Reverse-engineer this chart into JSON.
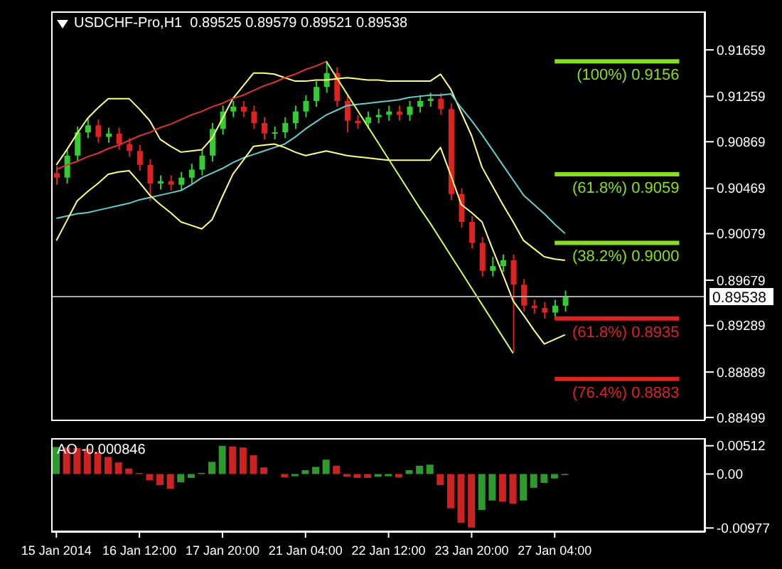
{
  "chart_data": [
    {
      "type": "candlestick",
      "title": "USDCHF-Pro,H1  0.89525 0.89579 0.89521 0.89538",
      "categories": [
        null,
        null,
        null,
        null,
        null,
        null,
        null,
        null,
        null,
        null,
        null,
        null,
        null,
        null,
        null,
        null,
        null,
        null,
        null,
        null,
        null,
        null,
        null,
        null,
        null,
        null,
        null,
        null,
        null,
        null,
        null,
        null,
        null,
        null,
        null,
        null,
        null,
        null,
        null,
        null,
        null,
        null,
        null,
        null,
        null,
        null,
        null,
        null,
        null,
        null,
        null,
        null,
        null,
        null,
        null,
        null,
        null,
        null,
        null,
        null,
        null,
        null,
        null
      ],
      "ohlc": [
        [
          0.906,
          0.9066,
          0.905,
          0.9056
        ],
        [
          0.9056,
          0.908,
          0.9051,
          0.9075
        ],
        [
          0.9075,
          0.91,
          0.907,
          0.9095
        ],
        [
          0.9095,
          0.9107,
          0.909,
          0.9101
        ],
        [
          0.9101,
          0.9106,
          0.9086,
          0.9091
        ],
        [
          0.9091,
          0.9099,
          0.9086,
          0.9094
        ],
        [
          0.9094,
          0.9099,
          0.908,
          0.9085
        ],
        [
          0.9085,
          0.909,
          0.9074,
          0.9079
        ],
        [
          0.9079,
          0.9084,
          0.9062,
          0.9067
        ],
        [
          0.9067,
          0.9072,
          0.9036,
          0.9051
        ],
        [
          0.9051,
          0.9058,
          0.9046,
          0.9053
        ],
        [
          0.9053,
          0.9058,
          0.9045,
          0.905
        ],
        [
          0.905,
          0.9061,
          0.9045,
          0.9056
        ],
        [
          0.9056,
          0.9068,
          0.9051,
          0.9063
        ],
        [
          0.9063,
          0.908,
          0.9058,
          0.9075
        ],
        [
          0.9075,
          0.9103,
          0.907,
          0.9098
        ],
        [
          0.9098,
          0.9118,
          0.9093,
          0.9113
        ],
        [
          0.9113,
          0.9122,
          0.9108,
          0.9117
        ],
        [
          0.9117,
          0.9122,
          0.9108,
          0.9113
        ],
        [
          0.9113,
          0.9118,
          0.9098,
          0.9103
        ],
        [
          0.9103,
          0.9108,
          0.9089,
          0.9094
        ],
        [
          0.9094,
          0.91,
          0.9089,
          0.9095
        ],
        [
          0.9095,
          0.9108,
          0.909,
          0.9103
        ],
        [
          0.9103,
          0.9118,
          0.9098,
          0.9113
        ],
        [
          0.9113,
          0.9127,
          0.9108,
          0.9122
        ],
        [
          0.9122,
          0.9139,
          0.9117,
          0.9134
        ],
        [
          0.9134,
          0.9156,
          0.9129,
          0.9146
        ],
        [
          0.9146,
          0.9151,
          0.9117,
          0.9122
        ],
        [
          0.9122,
          0.9127,
          0.9095,
          0.9105
        ],
        [
          0.9105,
          0.911,
          0.9098,
          0.9103
        ],
        [
          0.9103,
          0.9113,
          0.9098,
          0.9108
        ],
        [
          0.9108,
          0.9115,
          0.9103,
          0.911
        ],
        [
          0.911,
          0.9118,
          0.9105,
          0.9113
        ],
        [
          0.9113,
          0.9118,
          0.9105,
          0.911
        ],
        [
          0.911,
          0.9122,
          0.9105,
          0.9117
        ],
        [
          0.9117,
          0.9127,
          0.9112,
          0.9122
        ],
        [
          0.9122,
          0.9129,
          0.9117,
          0.9124
        ],
        [
          0.9124,
          0.9129,
          0.911,
          0.9115
        ],
        [
          0.9115,
          0.912,
          0.9037,
          0.9042
        ],
        [
          0.9042,
          0.9047,
          0.9013,
          0.9018
        ],
        [
          0.9018,
          0.9023,
          0.8995,
          0.9
        ],
        [
          0.9,
          0.9005,
          0.8971,
          0.8976
        ],
        [
          0.8976,
          0.8988,
          0.8971,
          0.898
        ],
        [
          0.898,
          0.899,
          0.8975,
          0.8985
        ],
        [
          0.8985,
          0.899,
          0.8906,
          0.8964
        ],
        [
          0.8964,
          0.8969,
          0.8941,
          0.8946
        ],
        [
          0.8946,
          0.8951,
          0.8939,
          0.8944
        ],
        [
          0.8944,
          0.8949,
          0.8935,
          0.894
        ],
        [
          0.894,
          0.8951,
          0.8935,
          0.8946
        ],
        [
          0.8946,
          0.8959,
          0.8941,
          0.8954
        ],
        null,
        null,
        null,
        null,
        null,
        null,
        null,
        null,
        null,
        null,
        null,
        null,
        null
      ],
      "colors": [
        "#dd2222",
        "#33cc33",
        "#33cc33",
        "#33cc33",
        "#dd2222",
        "#33cc33",
        "#dd2222",
        "#dd2222",
        "#dd2222",
        "#dd2222",
        "#33cc33",
        "#dd2222",
        "#33cc33",
        "#33cc33",
        "#33cc33",
        "#33cc33",
        "#33cc33",
        "#33cc33",
        "#dd2222",
        "#dd2222",
        "#dd2222",
        "#33cc33",
        "#33cc33",
        "#33cc33",
        "#33cc33",
        "#33cc33",
        "#33cc33",
        "#dd2222",
        "#dd2222",
        "#dd2222",
        "#33cc33",
        "#33cc33",
        "#33cc33",
        "#dd2222",
        "#33cc33",
        "#33cc33",
        "#33cc33",
        "#dd2222",
        "#dd2222",
        "#dd2222",
        "#dd2222",
        "#dd2222",
        "#33cc33",
        "#33cc33",
        "#dd2222",
        "#dd2222",
        "#dd2222",
        "#dd2222",
        "#33cc33",
        "#33cc33",
        null,
        null,
        null,
        null,
        null,
        null,
        null,
        null,
        null,
        null,
        null,
        null,
        null
      ],
      "series": [
        {
          "type": "line",
          "color": "#ffff88",
          "values": [
            0.9067,
            0.908,
            0.9094,
            0.9107,
            0.9116,
            0.9124,
            0.9124,
            0.9124,
            0.9115,
            0.9105,
            0.9089,
            0.9083,
            0.9078,
            0.9079,
            0.908,
            0.909,
            0.9107,
            0.9124,
            0.9135,
            0.9146,
            0.9146,
            0.9145,
            0.9142,
            0.9139,
            0.9139,
            0.914,
            0.914,
            0.9141,
            0.9142,
            0.9141,
            0.914,
            0.914,
            0.9139,
            0.9139,
            0.9139,
            0.9139,
            0.9139,
            0.9145,
            0.9132,
            0.9112,
            0.9092,
            0.9065,
            0.9049,
            0.9033,
            0.9018,
            0.9002,
            0.8995,
            0.8988,
            0.8986,
            0.8985,
            null,
            null,
            null,
            null,
            null,
            null,
            null,
            null,
            null,
            null,
            null,
            null,
            null
          ]
        },
        {
          "type": "line",
          "color": "#66cccc",
          "values": [
            0.9021,
            0.9023,
            0.9025,
            0.9026,
            0.9028,
            0.903,
            0.9032,
            0.9034,
            0.9037,
            0.9039,
            0.9041,
            0.9043,
            0.9045,
            0.905,
            0.9056,
            0.906,
            0.9064,
            0.9069,
            0.9073,
            0.9076,
            0.9079,
            0.9082,
            0.9085,
            0.9091,
            0.9098,
            0.9104,
            0.911,
            0.9114,
            0.9118,
            0.9119,
            0.912,
            0.9121,
            0.9122,
            0.9123,
            0.9125,
            0.9126,
            0.9127,
            0.9127,
            0.9128,
            0.9116,
            0.9105,
            0.9093,
            0.908,
            0.9067,
            0.9054,
            0.9041,
            0.9033,
            0.9025,
            0.9016,
            0.9008,
            null,
            null,
            null,
            null,
            null,
            null,
            null,
            null,
            null,
            null,
            null,
            null,
            null
          ]
        },
        {
          "type": "line",
          "color": "#ffff88",
          "values": [
            0.9002,
            0.9019,
            0.9036,
            0.9044,
            0.9051,
            0.9059,
            0.9061,
            0.9062,
            0.9052,
            0.9041,
            0.9033,
            0.9026,
            0.9018,
            0.9015,
            0.9012,
            0.902,
            0.904,
            0.9059,
            0.9071,
            0.9083,
            0.9084,
            0.9085,
            0.9082,
            0.9078,
            0.9075,
            0.9077,
            0.9079,
            0.9077,
            0.9075,
            0.9074,
            0.9073,
            0.9072,
            0.9071,
            0.9071,
            0.9071,
            0.9071,
            0.9071,
            0.9082,
            0.9058,
            0.9033,
            0.9026,
            0.9018,
            0.8995,
            0.8973,
            0.895,
            0.8938,
            0.8925,
            0.8913,
            0.8917,
            0.8921,
            null,
            null,
            null,
            null,
            null,
            null,
            null,
            null,
            null,
            null,
            null,
            null,
            null
          ]
        },
        {
          "type": "line",
          "color": "#dd3333",
          "values": [
            0.9063,
            0.9067,
            0.907,
            0.9074,
            0.9077,
            0.9081,
            0.9084,
            0.9088,
            0.9092,
            0.9095,
            0.9099,
            0.9102,
            0.9106,
            0.911,
            0.9113,
            0.9117,
            0.912,
            0.9124,
            0.9127,
            0.9131,
            0.9135,
            0.9138,
            0.9142,
            0.9145,
            0.9149,
            0.9152,
            0.9156,
            null,
            null,
            null,
            null,
            null,
            null,
            null,
            null,
            null,
            null,
            null,
            null,
            null,
            null,
            null,
            null,
            null,
            null,
            null,
            null,
            null,
            null,
            null,
            null,
            null,
            null,
            null,
            null,
            null,
            null,
            null,
            null,
            null,
            null,
            null,
            null
          ]
        },
        {
          "type": "line",
          "color": "#ccff66",
          "values": [
            null,
            null,
            null,
            null,
            null,
            null,
            null,
            null,
            null,
            null,
            null,
            null,
            null,
            null,
            null,
            null,
            null,
            null,
            null,
            null,
            null,
            null,
            null,
            null,
            null,
            null,
            0.9156,
            0.9142,
            0.9128,
            0.9114,
            0.91,
            0.9086,
            0.9072,
            0.9058,
            0.9044,
            0.903,
            0.9017,
            0.9003,
            0.8989,
            0.8975,
            0.8961,
            0.8947,
            0.8933,
            0.8919,
            0.8905,
            null,
            null,
            null,
            null,
            null,
            null,
            null,
            null,
            null,
            null,
            null,
            null,
            null,
            null,
            null,
            null,
            null,
            null
          ]
        }
      ],
      "ref_lines": [
        {
          "axis": "y",
          "value": 0.9156,
          "label": "(100%) 0.9156",
          "color": "#88dd22"
        },
        {
          "axis": "y",
          "value": 0.9059,
          "label": "(61.8%) 0.9059",
          "color": "#88dd22"
        },
        {
          "axis": "y",
          "value": 0.9,
          "label": "(38.2%) 0.9000",
          "color": "#88dd22"
        },
        {
          "axis": "y",
          "value": 0.8935,
          "label": "(61.8%) 0.8935",
          "color": "#dd2222"
        },
        {
          "axis": "y",
          "value": 0.8883,
          "label": "(76.4%) 0.8883",
          "color": "#dd2222"
        },
        {
          "axis": "y",
          "value": 0.89538,
          "label": "0.89538",
          "color": "#aaaaaa",
          "line_style": "solid"
        }
      ],
      "ylim": [
        0.8848,
        0.9199
      ],
      "yticks": [
        0.91659,
        0.91259,
        0.90869,
        0.90469,
        0.90079,
        0.89679,
        0.89289,
        0.88889,
        0.88499
      ],
      "tick_labels": "y"
    },
    {
      "type": "bar",
      "title": "AO -0.000846",
      "categories": [
        "15 Jan 2014",
        null,
        null,
        null,
        null,
        null,
        null,
        null,
        "16 Jan 12:00",
        null,
        null,
        null,
        null,
        null,
        null,
        null,
        "17 Jan 20:00",
        null,
        null,
        null,
        null,
        null,
        null,
        null,
        "21 Jan 04:00",
        null,
        null,
        null,
        null,
        null,
        null,
        null,
        "22 Jan 12:00",
        null,
        null,
        null,
        null,
        null,
        null,
        null,
        "23 Jan 20:00",
        null,
        null,
        null,
        null,
        null,
        null,
        null,
        "27 Jan 04:00",
        null,
        null,
        null,
        null,
        null,
        null,
        null,
        null,
        null,
        null,
        null,
        null,
        null,
        null
      ],
      "values": [
        0.0049,
        0.0048,
        0.0047,
        0.0046,
        0.004,
        0.0031,
        0.0021,
        0.001,
        0.0002,
        -0.0011,
        -0.002,
        -0.0027,
        -0.0015,
        -0.0007,
        0.0002,
        0.0022,
        0.0051,
        0.005,
        0.0048,
        0.0034,
        0.0012,
        0,
        -0.0006,
        -0.0004,
        0.0007,
        0.0013,
        0.0026,
        0.0015,
        -0.0005,
        -0.0007,
        -0.0007,
        -0.0005,
        -0.0004,
        -0.0006,
        0.0007,
        0.0015,
        0.0017,
        -0.002,
        -0.0062,
        -0.0088,
        -0.0097,
        -0.0065,
        -0.0048,
        -0.005,
        -0.0054,
        -0.0048,
        -0.0025,
        -0.0016,
        -0.0008,
        -0.0002,
        null,
        null,
        null,
        null,
        null,
        null,
        null,
        null,
        null,
        null,
        null,
        null,
        null
      ],
      "colors": [
        "#2e9a2e",
        "#cc2222",
        "#cc2222",
        "#cc2222",
        "#cc2222",
        "#cc2222",
        "#cc2222",
        "#cc2222",
        "#cc2222",
        "#cc2222",
        "#cc2222",
        "#cc2222",
        "#2e9a2e",
        "#2e9a2e",
        "#2e9a2e",
        "#2e9a2e",
        "#2e9a2e",
        "#cc2222",
        "#cc2222",
        "#cc2222",
        "#cc2222",
        "#cc2222",
        "#cc2222",
        "#2e9a2e",
        "#2e9a2e",
        "#2e9a2e",
        "#2e9a2e",
        "#cc2222",
        "#cc2222",
        "#cc2222",
        "#cc2222",
        "#2e9a2e",
        "#2e9a2e",
        "#cc2222",
        "#2e9a2e",
        "#2e9a2e",
        "#2e9a2e",
        "#cc2222",
        "#cc2222",
        "#cc2222",
        "#cc2222",
        "#2e9a2e",
        "#2e9a2e",
        "#cc2222",
        "#cc2222",
        "#2e9a2e",
        "#2e9a2e",
        "#2e9a2e",
        "#2e9a2e",
        "#2e9a2e",
        null,
        null,
        null,
        null,
        null,
        null,
        null,
        null,
        null,
        null,
        null,
        null,
        null
      ],
      "ylim": [
        -0.0105,
        0.0065
      ],
      "yticks": [
        0.00512,
        {
          "value": 0,
          "label": "0.00"
        },
        -0.00977
      ]
    }
  ]
}
